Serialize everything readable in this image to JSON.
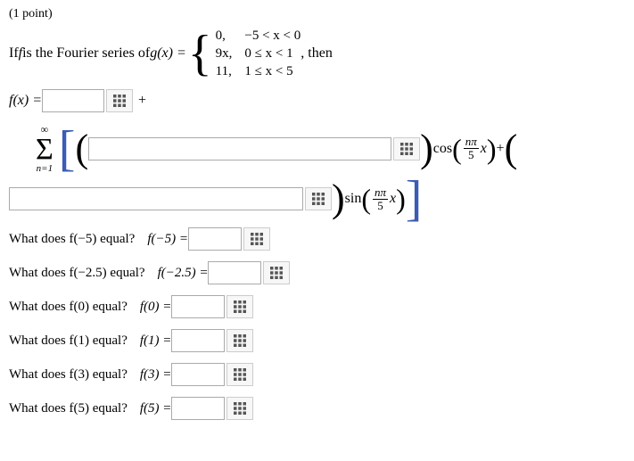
{
  "header": {
    "points": "(1 point)"
  },
  "problem": {
    "intro_prefix": "If ",
    "f_is": " is the Fourier series of ",
    "gx_eq": "g(x) = ",
    "then": " , then",
    "pieces": {
      "vals": [
        "0,",
        "9x,",
        "11,"
      ],
      "conds": [
        "−5 < x < 0",
        "0 ≤ x < 1",
        "1 ≤ x < 5"
      ]
    }
  },
  "fx_line": {
    "label": "f(x) = ",
    "plus": " + "
  },
  "series": {
    "sigma_top": "∞",
    "sigma_sym": "Σ",
    "sigma_bot": "n=1",
    "cos_text": " cos ",
    "sin_text": " sin ",
    "npi": "nπ",
    "five": "5",
    "x": "x",
    "plus": " + "
  },
  "questions": [
    {
      "text": "What does f(−5) equal?",
      "eq": "f(−5) = "
    },
    {
      "text": "What does f(−2.5) equal?",
      "eq": "f(−2.5) = "
    },
    {
      "text": "What does f(0) equal?",
      "eq": "f(0) = "
    },
    {
      "text": "What does f(1) equal?",
      "eq": "f(1) = "
    },
    {
      "text": "What does f(3) equal?",
      "eq": "f(3) = "
    },
    {
      "text": "What does f(5) equal?",
      "eq": "f(5) = "
    }
  ],
  "input_widths": {
    "a0": 70,
    "cos_coef": 340,
    "sin_coef": 330,
    "short": 60
  }
}
